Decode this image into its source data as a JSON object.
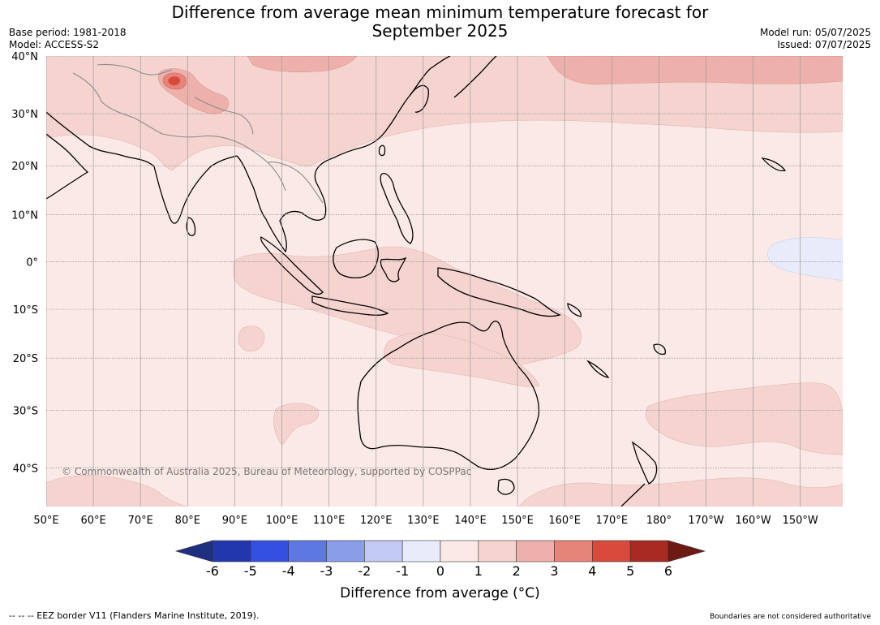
{
  "title": {
    "line1": "Difference from average mean minimum temperature forecast for",
    "line2": "September 2025"
  },
  "meta": {
    "base_period": "Base period: 1981-2018",
    "model": "Model: ACCESS-S2",
    "model_run": "Model run: 05/07/2025",
    "issued": "Issued: 07/07/2025"
  },
  "map": {
    "lat_labels": [
      "40°N",
      "30°N",
      "20°N",
      "10°N",
      "0°",
      "10°S",
      "20°S",
      "30°S",
      "40°S"
    ],
    "lat_values": [
      40,
      30,
      20,
      10,
      0,
      -10,
      -20,
      -30,
      -40
    ],
    "lon_labels": [
      "50°E",
      "60°E",
      "70°E",
      "80°E",
      "90°E",
      "100°E",
      "110°E",
      "120°E",
      "130°E",
      "140°E",
      "150°E",
      "160°E",
      "170°E",
      "180°",
      "170°W",
      "160°W",
      "150°W"
    ],
    "lon_values": [
      50,
      60,
      70,
      80,
      90,
      100,
      110,
      120,
      130,
      140,
      150,
      160,
      170,
      180,
      190,
      200,
      210
    ],
    "extent": {
      "lon_min": 50,
      "lon_max": 219,
      "lat_min": -46,
      "lat_max": 40
    },
    "copyright": "© Commonwealth of Australia 2025, Bureau of Meteorology, supported by COSPPac",
    "ocean_color": "#fbe9e7",
    "land_anomaly_color": "#f5d4d0"
  },
  "colorbar": {
    "ticks": [
      "-6",
      "-5",
      "-4",
      "-3",
      "-2",
      "-1",
      "0",
      "1",
      "2",
      "3",
      "4",
      "5",
      "6"
    ],
    "colors": [
      "#1f2f80",
      "#2337ad",
      "#3350e0",
      "#5d77e3",
      "#8a9de8",
      "#c2caf3",
      "#e8ecfa",
      "#fbe9e7",
      "#f5d4d0",
      "#eeb0aa",
      "#e6847a",
      "#d84a3c",
      "#a82a22",
      "#6e1a14"
    ],
    "title": "Difference from average (°C)"
  },
  "footer": {
    "eez": "--  --  -- EEZ border V11 (Flanders Marine Institute, 2019).",
    "boundaries": "Boundaries are not considered authoritative"
  }
}
